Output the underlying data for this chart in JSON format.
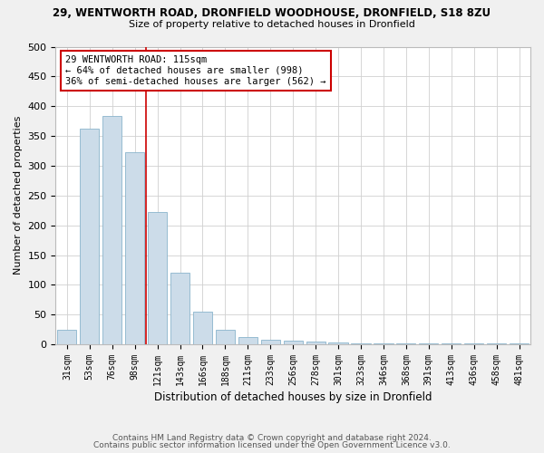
{
  "title": "29, WENTWORTH ROAD, DRONFIELD WOODHOUSE, DRONFIELD, S18 8ZU",
  "subtitle": "Size of property relative to detached houses in Dronfield",
  "xlabel": "Distribution of detached houses by size in Dronfield",
  "ylabel": "Number of detached properties",
  "footnote1": "Contains HM Land Registry data © Crown copyright and database right 2024.",
  "footnote2": "Contains public sector information licensed under the Open Government Licence v3.0.",
  "bar_labels": [
    "31sqm",
    "53sqm",
    "76sqm",
    "98sqm",
    "121sqm",
    "143sqm",
    "166sqm",
    "188sqm",
    "211sqm",
    "233sqm",
    "256sqm",
    "278sqm",
    "301sqm",
    "323sqm",
    "346sqm",
    "368sqm",
    "391sqm",
    "413sqm",
    "436sqm",
    "458sqm",
    "481sqm"
  ],
  "bar_values": [
    25,
    362,
    383,
    322,
    222,
    120,
    55,
    25,
    12,
    8,
    6,
    4,
    3,
    2,
    2,
    1,
    1,
    1,
    1,
    1,
    1
  ],
  "bar_color": "#ccdce9",
  "bar_edge_color": "#8ab4cc",
  "property_line_x": 3.5,
  "annotation_text": "29 WENTWORTH ROAD: 115sqm\n← 64% of detached houses are smaller (998)\n36% of semi-detached houses are larger (562) →",
  "annotation_box_color": "#ffffff",
  "annotation_box_edge_color": "#cc0000",
  "property_line_color": "#cc0000",
  "ylim": [
    0,
    500
  ],
  "background_color": "#f0f0f0",
  "axes_background": "#ffffff",
  "grid_color": "#d0d0d0"
}
